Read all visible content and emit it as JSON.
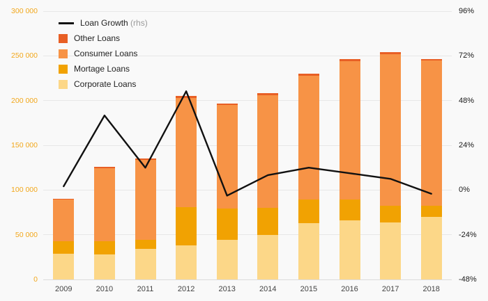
{
  "chart_data": {
    "type": "bar",
    "stacked": true,
    "title": "",
    "grid": true,
    "legend_position": "top-left",
    "categories": [
      "2009",
      "2010",
      "2011",
      "2012",
      "2013",
      "2014",
      "2015",
      "2016",
      "2017",
      "2018"
    ],
    "series": [
      {
        "name": "Corporate Loans",
        "color": "#fcd788",
        "values": [
          29000,
          28000,
          34000,
          38000,
          44000,
          50000,
          63000,
          66000,
          64000,
          70000
        ]
      },
      {
        "name": "Mortage Loans",
        "color": "#f1a202",
        "values": [
          14000,
          15000,
          10000,
          43000,
          35000,
          30000,
          26000,
          23000,
          18000,
          12000
        ]
      },
      {
        "name": "Consumer Loans",
        "color": "#f79346",
        "values": [
          46000,
          81000,
          90000,
          122000,
          116000,
          126000,
          139000,
          155000,
          170000,
          163000
        ]
      },
      {
        "name": "Other Loans",
        "color": "#e85f25",
        "values": [
          1000,
          2000,
          1000,
          2000,
          2000,
          2000,
          2000,
          2000,
          2000,
          1000
        ]
      }
    ],
    "line_series": {
      "name": "Loan Growth",
      "suffix": "(rhs)",
      "color": "#111111",
      "axis": "right",
      "values": [
        2,
        40,
        12,
        53,
        -3,
        8,
        12,
        9,
        6,
        -2
      ]
    },
    "left_axis": {
      "min": 0,
      "max": 300000,
      "step": 50000,
      "tick_labels": [
        "0",
        "50 000",
        "100 000",
        "150 000",
        "200 000",
        "250 000",
        "300 000"
      ],
      "color": "#f2a71b"
    },
    "right_axis": {
      "min": -48,
      "max": 96,
      "step": 24,
      "tick_labels": [
        "-48%",
        "-24%",
        "0%",
        "24%",
        "48%",
        "72%",
        "96%"
      ],
      "color": "#1a1a1a"
    }
  }
}
